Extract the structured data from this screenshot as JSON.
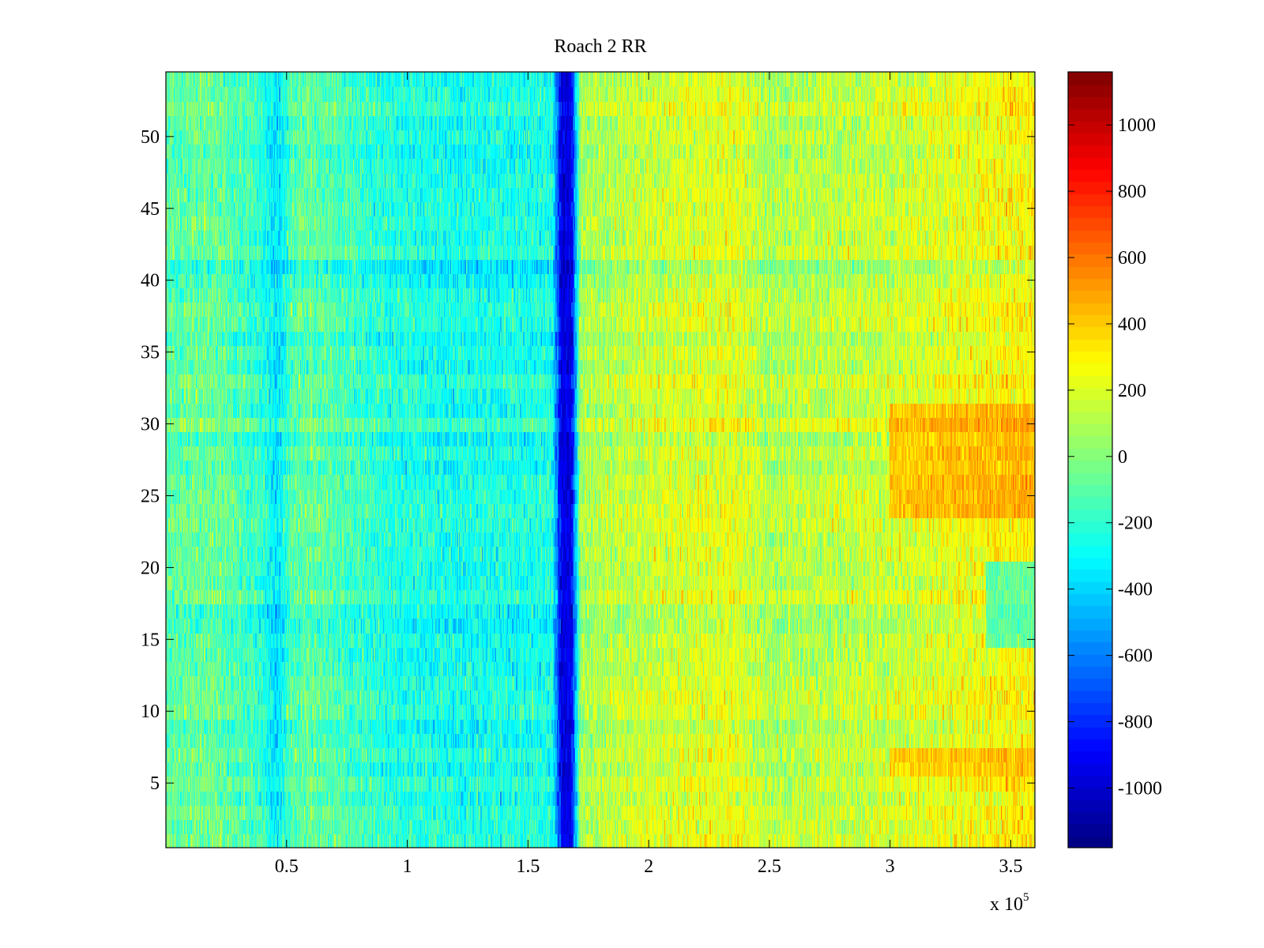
{
  "chart_data": {
    "type": "heatmap",
    "title": "Roach 2 RR",
    "xlabel": "",
    "ylabel": "",
    "x_exponent_label": "x 10",
    "x_exponent_power": "5",
    "xlim": [
      0,
      360000
    ],
    "ylim": [
      0.5,
      54.5
    ],
    "x_ticks": [
      {
        "value": 50000,
        "label": "0.5"
      },
      {
        "value": 100000,
        "label": "1"
      },
      {
        "value": 150000,
        "label": "1.5"
      },
      {
        "value": 200000,
        "label": "2"
      },
      {
        "value": 250000,
        "label": "2.5"
      },
      {
        "value": 300000,
        "label": "3"
      },
      {
        "value": 350000,
        "label": "3.5"
      }
    ],
    "y_ticks": [
      {
        "value": 5,
        "label": "5"
      },
      {
        "value": 10,
        "label": "10"
      },
      {
        "value": 15,
        "label": "15"
      },
      {
        "value": 20,
        "label": "20"
      },
      {
        "value": 25,
        "label": "25"
      },
      {
        "value": 30,
        "label": "30"
      },
      {
        "value": 35,
        "label": "35"
      },
      {
        "value": 40,
        "label": "40"
      },
      {
        "value": 45,
        "label": "45"
      },
      {
        "value": 50,
        "label": "50"
      }
    ],
    "rows": 54,
    "colormap": "jet",
    "color_limits": [
      -1180,
      1160
    ],
    "colorbar_ticks": [
      {
        "value": 1000,
        "label": "1000"
      },
      {
        "value": 800,
        "label": "800"
      },
      {
        "value": 600,
        "label": "600"
      },
      {
        "value": 400,
        "label": "400"
      },
      {
        "value": 200,
        "label": "200"
      },
      {
        "value": 0,
        "label": "0"
      },
      {
        "value": -200,
        "label": "-200"
      },
      {
        "value": -400,
        "label": "-400"
      },
      {
        "value": -600,
        "label": "-600"
      },
      {
        "value": -800,
        "label": "-800"
      },
      {
        "value": -1000,
        "label": "-1000"
      }
    ],
    "trend_profile": [
      {
        "x": 0,
        "value": -100
      },
      {
        "x": 20000,
        "value": -60
      },
      {
        "x": 40000,
        "value": -200
      },
      {
        "x": 46000,
        "value": -380
      },
      {
        "x": 52000,
        "value": -120
      },
      {
        "x": 60000,
        "value": -80
      },
      {
        "x": 90000,
        "value": -220
      },
      {
        "x": 120000,
        "value": -260
      },
      {
        "x": 160000,
        "value": -240
      },
      {
        "x": 164000,
        "value": -950
      },
      {
        "x": 168000,
        "value": -950
      },
      {
        "x": 172000,
        "value": 80
      },
      {
        "x": 200000,
        "value": 160
      },
      {
        "x": 235000,
        "value": 220
      },
      {
        "x": 250000,
        "value": 100
      },
      {
        "x": 300000,
        "value": 160
      },
      {
        "x": 340000,
        "value": 260
      },
      {
        "x": 360000,
        "value": 300
      }
    ],
    "notable_features": [
      {
        "x_range": [
          164000,
          168000
        ],
        "y_range": [
          0.5,
          54.5
        ],
        "value": -950
      },
      {
        "x_range": [
          300000,
          360000
        ],
        "y_range": [
          24,
          31
        ],
        "value": 600
      },
      {
        "x_range": [
          300000,
          360000
        ],
        "y_range": [
          5.5,
          7.5
        ],
        "value": 550
      },
      {
        "x_range": [
          340000,
          360000
        ],
        "y_range": [
          15,
          20
        ],
        "value": -350
      }
    ]
  }
}
